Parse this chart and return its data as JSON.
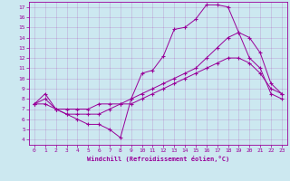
{
  "xlabel": "Windchill (Refroidissement éolien,°C)",
  "bg_color": "#cce8f0",
  "line_color": "#990099",
  "xlim": [
    -0.5,
    23.5
  ],
  "ylim": [
    3.5,
    17.5
  ],
  "xticks": [
    0,
    1,
    2,
    3,
    4,
    5,
    6,
    7,
    8,
    9,
    10,
    11,
    12,
    13,
    14,
    15,
    16,
    17,
    18,
    19,
    20,
    21,
    22,
    23
  ],
  "yticks": [
    4,
    5,
    6,
    7,
    8,
    9,
    10,
    11,
    12,
    13,
    14,
    15,
    16,
    17
  ],
  "line1_x": [
    0,
    1,
    2,
    3,
    4,
    5,
    6,
    7,
    8,
    9,
    10,
    11,
    12,
    13,
    14,
    15,
    16,
    17,
    18,
    19,
    20,
    21,
    22,
    23
  ],
  "line1_y": [
    7.5,
    8.5,
    7.0,
    6.5,
    6.0,
    5.5,
    5.5,
    5.0,
    4.2,
    8.0,
    10.5,
    10.8,
    12.2,
    14.8,
    15.0,
    15.8,
    17.2,
    17.2,
    17.0,
    14.5,
    12.0,
    11.0,
    8.5,
    8.0
  ],
  "line2_x": [
    0,
    1,
    2,
    3,
    4,
    5,
    6,
    7,
    8,
    9,
    10,
    11,
    12,
    13,
    14,
    15,
    16,
    17,
    18,
    19,
    20,
    21,
    22,
    23
  ],
  "line2_y": [
    7.5,
    8.0,
    7.0,
    6.5,
    6.5,
    6.5,
    6.5,
    7.0,
    7.5,
    7.5,
    8.0,
    8.5,
    9.0,
    9.5,
    10.0,
    10.5,
    11.0,
    11.5,
    12.0,
    12.0,
    11.5,
    10.5,
    9.0,
    8.5
  ],
  "line3_x": [
    0,
    1,
    2,
    3,
    4,
    5,
    6,
    7,
    8,
    9,
    10,
    11,
    12,
    13,
    14,
    15,
    16,
    17,
    18,
    19,
    20,
    21,
    22,
    23
  ],
  "line3_y": [
    7.5,
    7.5,
    7.0,
    7.0,
    7.0,
    7.0,
    7.5,
    7.5,
    7.5,
    8.0,
    8.5,
    9.0,
    9.5,
    10.0,
    10.5,
    11.0,
    12.0,
    13.0,
    14.0,
    14.5,
    14.0,
    12.5,
    9.5,
    8.5
  ]
}
